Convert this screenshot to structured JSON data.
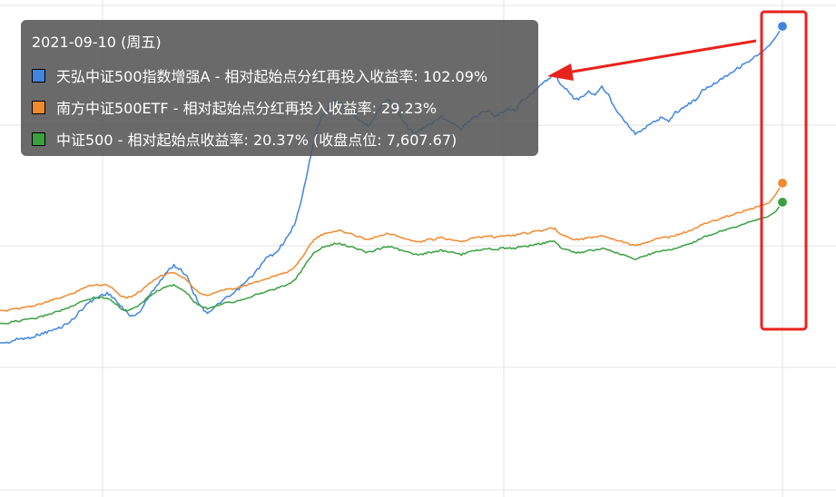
{
  "chart_data": {
    "type": "line",
    "title": "",
    "xlabel": "",
    "ylabel": "",
    "grid": true,
    "tooltip": {
      "date": "2021-09-10 (周五)",
      "rows": [
        {
          "text": "天弘中证500指数增强A - 相对起始点分红再投入收益率: 102.09%",
          "color": "#3f86e0"
        },
        {
          "text": "南方中证500ETF - 相对起始点分红再投入收益率: 29.23%",
          "color": "#f08a2f"
        },
        {
          "text": "中证500 - 相对起始点收益率: 20.37% (收盘点位: 7,607.67)",
          "color": "#3aa040"
        }
      ]
    },
    "series": [
      {
        "name": "天弘中证500指数增强A",
        "color": "#3f86e0",
        "last_value": 102.09,
        "values": [
          -45,
          -45,
          -44,
          -43,
          -43,
          -42,
          -41,
          -40,
          -39,
          -38,
          -36,
          -34,
          -30,
          -27,
          -25,
          -23,
          -22,
          -24,
          -28,
          -31,
          -33,
          -30,
          -25,
          -20,
          -16,
          -12,
          -9,
          -11,
          -14,
          -22,
          -28,
          -31,
          -29,
          -26,
          -24,
          -22,
          -19,
          -16,
          -13,
          -9,
          -5,
          -4,
          0,
          4,
          10,
          20,
          35,
          50,
          60,
          64,
          68,
          66,
          62,
          60,
          58,
          56,
          60,
          65,
          68,
          65,
          60,
          55,
          52,
          54,
          56,
          58,
          60,
          58,
          56,
          54,
          58,
          60,
          62,
          63,
          60,
          62,
          64,
          63,
          67,
          70,
          72,
          75,
          78,
          80,
          74,
          72,
          68,
          69,
          72,
          70,
          74,
          70,
          64,
          60,
          56,
          52,
          54,
          56,
          58,
          60,
          58,
          62,
          64,
          66,
          68,
          72,
          74,
          76,
          78,
          80,
          82,
          84,
          86,
          88,
          90,
          93,
          97,
          102.09
        ]
      },
      {
        "name": "南方中证500ETF",
        "color": "#f08a2f",
        "last_value": 29.23,
        "values": [
          -30,
          -30,
          -29,
          -29,
          -28,
          -28,
          -27,
          -26,
          -25,
          -24,
          -23,
          -22,
          -20,
          -19,
          -18,
          -18,
          -18,
          -20,
          -23,
          -24,
          -23,
          -21,
          -18,
          -16,
          -14,
          -13,
          -12,
          -14,
          -16,
          -20,
          -22,
          -23,
          -22,
          -21,
          -20,
          -20,
          -19,
          -18,
          -17,
          -16,
          -15,
          -14,
          -13,
          -12,
          -10,
          -6,
          -1,
          3,
          5,
          6,
          7,
          7,
          6,
          5,
          4,
          3,
          4,
          5,
          6,
          5,
          4,
          3,
          2,
          2,
          3,
          3,
          4,
          3,
          3,
          2,
          3,
          4,
          4,
          5,
          4,
          5,
          5,
          5,
          6,
          6,
          7,
          7,
          8,
          8,
          5,
          4,
          3,
          3,
          4,
          4,
          5,
          4,
          3,
          2,
          1,
          0,
          1,
          2,
          3,
          4,
          4,
          5,
          6,
          7,
          8,
          10,
          11,
          12,
          13,
          14,
          15,
          16,
          17,
          18,
          19,
          20,
          24,
          29.23
        ]
      },
      {
        "name": "中证500",
        "color": "#3aa040",
        "last_value": 20.37,
        "values": [
          -36,
          -36,
          -35,
          -35,
          -34,
          -34,
          -33,
          -32,
          -31,
          -30,
          -29,
          -28,
          -26,
          -25,
          -24,
          -24,
          -24,
          -26,
          -29,
          -30,
          -29,
          -27,
          -24,
          -22,
          -20,
          -19,
          -18,
          -20,
          -22,
          -26,
          -28,
          -29,
          -28,
          -27,
          -26,
          -26,
          -25,
          -24,
          -23,
          -22,
          -21,
          -20,
          -19,
          -18,
          -16,
          -12,
          -7,
          -3,
          -1,
          0,
          1,
          1,
          0,
          -1,
          -2,
          -3,
          -2,
          -1,
          0,
          -1,
          -2,
          -3,
          -4,
          -4,
          -3,
          -3,
          -2,
          -3,
          -3,
          -4,
          -3,
          -2,
          -2,
          -1,
          -2,
          -1,
          -1,
          -1,
          0,
          0,
          1,
          1,
          2,
          2,
          -1,
          -2,
          -3,
          -3,
          -2,
          -2,
          -1,
          -2,
          -3,
          -4,
          -5,
          -6,
          -5,
          -4,
          -3,
          -2,
          -2,
          -1,
          0,
          1,
          2,
          4,
          5,
          6,
          7,
          8,
          9,
          10,
          11,
          12,
          13,
          14,
          16,
          20.37
        ]
      }
    ]
  }
}
